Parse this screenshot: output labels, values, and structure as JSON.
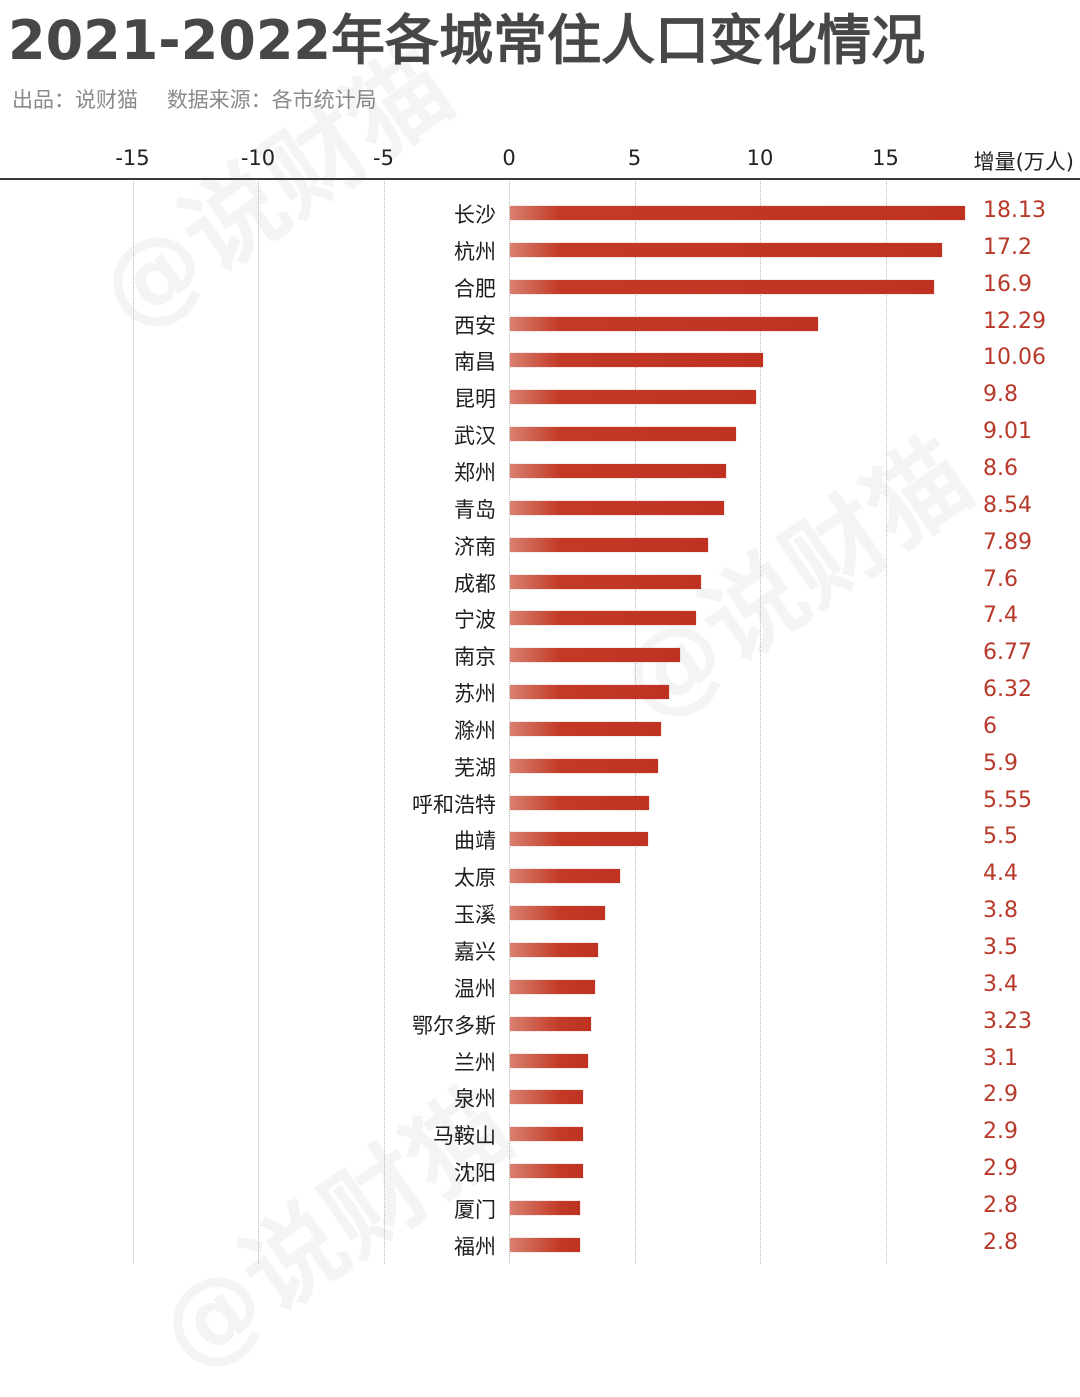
{
  "header": {
    "title": "2021-2022年各城常住人口变化情况",
    "producer": "出品：说财猫",
    "source": "数据来源：各市统计局"
  },
  "watermark": "@说财猫",
  "axis": {
    "ticks": [
      "-15",
      "-10",
      "-5",
      "0",
      "5",
      "10",
      "15"
    ],
    "unit_label": "增量(万人)"
  },
  "colors": {
    "bar": "#bf3222",
    "bar_light": "#d9806f",
    "value_text": "#b8392a",
    "title_text": "#474747"
  },
  "chart_data": {
    "type": "bar",
    "orientation": "horizontal",
    "title": "2021-2022年各城常住人口变化情况",
    "subtitle": "出品：说财猫  数据来源：各市统计局",
    "xlabel": "增量(万人)",
    "ylabel": "",
    "xlim": [
      -17.5,
      22
    ],
    "xticks": [
      -15,
      -10,
      -5,
      0,
      5,
      10,
      15
    ],
    "grid": true,
    "legend": null,
    "categories": [
      "长沙",
      "杭州",
      "合肥",
      "西安",
      "南昌",
      "昆明",
      "武汉",
      "郑州",
      "青岛",
      "济南",
      "成都",
      "宁波",
      "南京",
      "苏州",
      "滁州",
      "芜湖",
      "呼和浩特",
      "曲靖",
      "太原",
      "玉溪",
      "嘉兴",
      "温州",
      "鄂尔多斯",
      "兰州",
      "泉州",
      "马鞍山",
      "沈阳",
      "厦门",
      "福州"
    ],
    "values": [
      18.13,
      17.2,
      16.9,
      12.29,
      10.06,
      9.8,
      9.01,
      8.6,
      8.54,
      7.89,
      7.6,
      7.4,
      6.77,
      6.32,
      6,
      5.9,
      5.55,
      5.5,
      4.4,
      3.8,
      3.5,
      3.4,
      3.23,
      3.1,
      2.9,
      2.9,
      2.9,
      2.8,
      2.8
    ],
    "value_labels": [
      "18.13",
      "17.2",
      "16.9",
      "12.29",
      "10.06",
      "9.8",
      "9.01",
      "8.6",
      "8.54",
      "7.89",
      "7.6",
      "7.4",
      "6.77",
      "6.32",
      "6",
      "5.9",
      "5.55",
      "5.5",
      "4.4",
      "3.8",
      "3.5",
      "3.4",
      "3.23",
      "3.1",
      "2.9",
      "2.9",
      "2.9",
      "2.8",
      "2.8"
    ]
  }
}
